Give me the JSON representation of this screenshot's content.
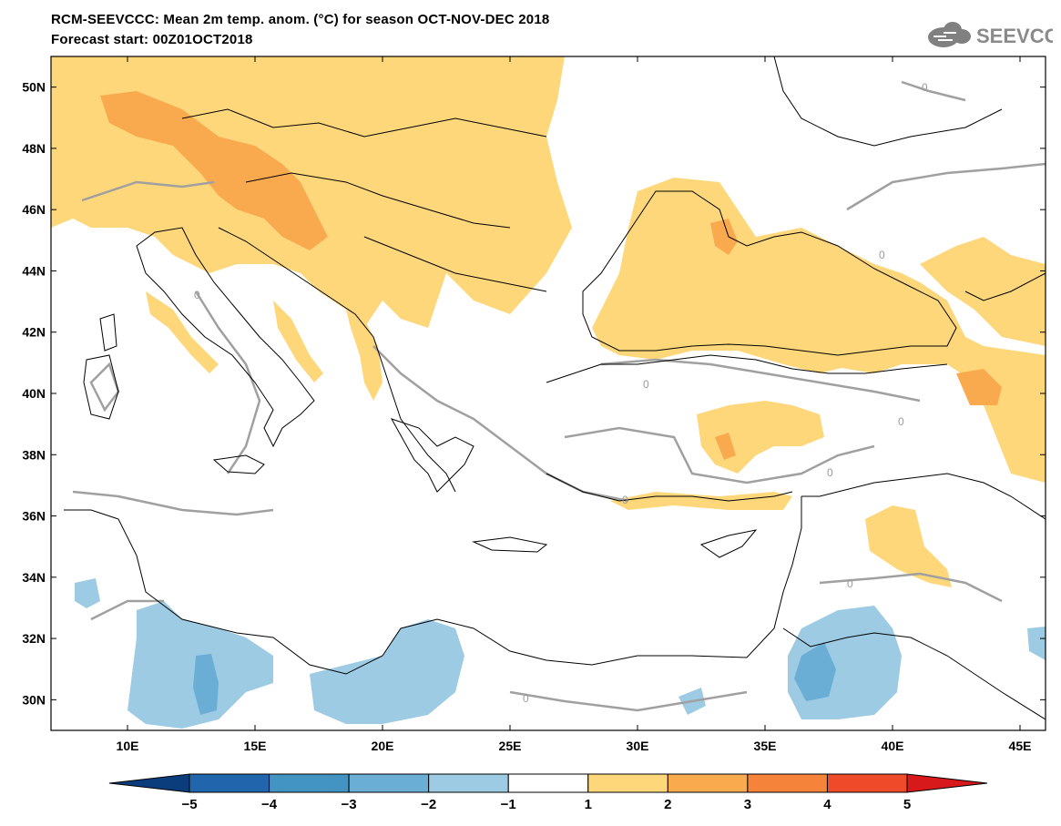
{
  "header": {
    "title": "RCM-SEEVCCC: Mean 2m temp. anom. (°C) for season OCT-NOV-DEC 2018",
    "subtitle": "Forecast start: 00Z01OCT2018",
    "logo_text": "SEEVCCC"
  },
  "map": {
    "lon_range": [
      7,
      46
    ],
    "lat_range": [
      29,
      51
    ],
    "lat_ticks": [
      {
        "value": 30,
        "label": "30N"
      },
      {
        "value": 32,
        "label": "32N"
      },
      {
        "value": 34,
        "label": "34N"
      },
      {
        "value": 36,
        "label": "36N"
      },
      {
        "value": 38,
        "label": "38N"
      },
      {
        "value": 40,
        "label": "40N"
      },
      {
        "value": 42,
        "label": "42N"
      },
      {
        "value": 44,
        "label": "44N"
      },
      {
        "value": 46,
        "label": "46N"
      },
      {
        "value": 48,
        "label": "48N"
      },
      {
        "value": 50,
        "label": "50N"
      }
    ],
    "lon_ticks": [
      {
        "value": 10,
        "label": "10E"
      },
      {
        "value": 15,
        "label": "15E"
      },
      {
        "value": 20,
        "label": "20E"
      },
      {
        "value": 25,
        "label": "25E"
      },
      {
        "value": 30,
        "label": "30E"
      },
      {
        "value": 35,
        "label": "35E"
      },
      {
        "value": 40,
        "label": "40E"
      },
      {
        "value": 45,
        "label": "45E"
      }
    ],
    "contour_label": "0",
    "colors": {
      "anomaly_1_2": "#fdd77a",
      "anomaly_2_3": "#f9aa4f",
      "anomaly_3_4": "#f5843a",
      "anomaly_neg1_neg2": "#9dcbe3",
      "anomaly_neg2_neg3": "#6aaed6",
      "zero_contour": "#a0a0a0"
    }
  },
  "colorbar": {
    "ticks": [
      "−5",
      "−4",
      "−3",
      "−2",
      "−1",
      "1",
      "2",
      "3",
      "4",
      "5"
    ],
    "colors": [
      "#0b3c7c",
      "#2166ac",
      "#4393c3",
      "#6aaed6",
      "#9dcbe3",
      "#ffffff",
      "#fdd77a",
      "#f9aa4f",
      "#f5843a",
      "#ef4a2a",
      "#d7191c"
    ]
  }
}
